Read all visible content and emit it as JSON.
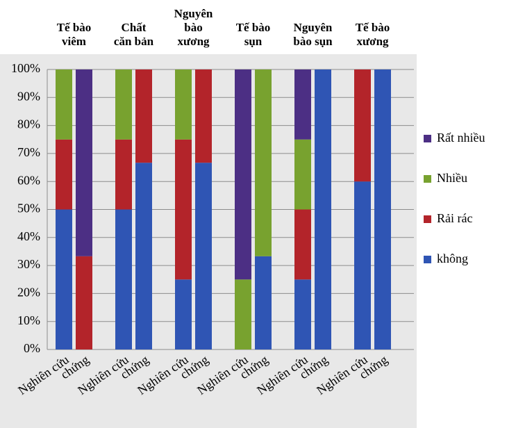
{
  "chart_data": {
    "type": "stacked-bar",
    "groups": [
      "Tế bào\nviêm",
      "Chất\ncăn bản",
      "Nguyên\nbào\nxương",
      "Tế bào\nsụn",
      "Nguyên\nbào sụn",
      "Tế bào\nxương"
    ],
    "categories": [
      "Nghiên cứu",
      "chứng",
      "Nghiên cứu",
      "chứng",
      "Nghiên cứu",
      "chứng",
      "Nghiên cứu",
      "chứng",
      "Nghiên cứu",
      "chứng",
      "Nghiên cứu",
      "chứng"
    ],
    "series": [
      {
        "name": "không",
        "color": "#2f55b4",
        "values": [
          50,
          0,
          50,
          66.7,
          25,
          66.7,
          0,
          33.3,
          25,
          100,
          60,
          100
        ]
      },
      {
        "name": "Rải rác",
        "color": "#b3242a",
        "values": [
          25,
          33.3,
          25,
          33.3,
          50,
          33.3,
          0,
          0,
          25,
          0,
          40,
          0
        ]
      },
      {
        "name": "Nhiều",
        "color": "#78a22f",
        "values": [
          25,
          0,
          25,
          0,
          25,
          0,
          25,
          66.7,
          25,
          0,
          0,
          0
        ]
      },
      {
        "name": "Rất nhiều",
        "color": "#4c2f84",
        "values": [
          0,
          66.7,
          0,
          0,
          0,
          0,
          75,
          0,
          25,
          0,
          0,
          0
        ]
      }
    ],
    "ylim": [
      0,
      100
    ],
    "yticks": [
      {
        "value": 0,
        "label": "0%"
      },
      {
        "value": 10,
        "label": "10%"
      },
      {
        "value": 20,
        "label": "20%"
      },
      {
        "value": 30,
        "label": "30%"
      },
      {
        "value": 40,
        "label": "40%"
      },
      {
        "value": 50,
        "label": "50%"
      },
      {
        "value": 60,
        "label": "60%"
      },
      {
        "value": 70,
        "label": "70%"
      },
      {
        "value": 80,
        "label": "80%"
      },
      {
        "value": 90,
        "label": "90%"
      },
      {
        "value": 100,
        "label": "100%"
      }
    ],
    "grid": true,
    "legend": "right"
  }
}
